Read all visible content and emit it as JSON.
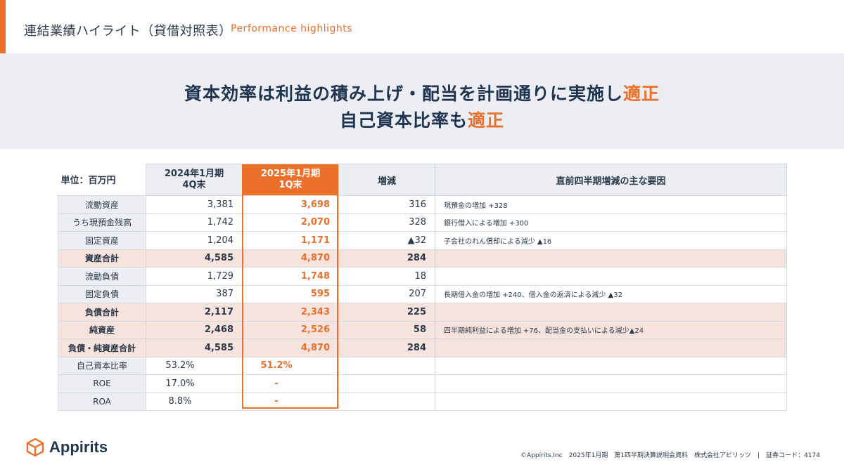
{
  "header": {
    "title": "連結業績ハイライト（貸借対照表）",
    "subtitle": "Performance highlights"
  },
  "banner": {
    "line1_main": "資本効率は利益の積み上げ・配当を計画通りに実施し",
    "line1_accent": "適正",
    "line2_main": "自己資本比率も",
    "line2_accent": "適正"
  },
  "table": {
    "unit_label": "単位：百万円",
    "col_2024_line1": "2024年1月期",
    "col_2024_line2": "4Q末",
    "col_2025_line1": "2025年1月期",
    "col_2025_line2": "1Q末",
    "col_change": "増減",
    "col_reason": "直前四半期増減の主な要因",
    "rows": [
      {
        "label": "流動資産",
        "v2024": "3,381",
        "v2025": "3,698",
        "change": "316",
        "reason": "現預金の増加 +328"
      },
      {
        "label": "うち現預金残高",
        "v2024": "1,742",
        "v2025": "2,070",
        "change": "328",
        "reason": "銀行借入による増加 +300"
      },
      {
        "label": "固定資産",
        "v2024": "1,204",
        "v2025": "1,171",
        "change": "▲32",
        "reason": "子会社のれん償却による減少 ▲16"
      },
      {
        "label": "資産合計",
        "v2024": "4,585",
        "v2025": "4,870",
        "change": "284",
        "reason": ""
      },
      {
        "label": "流動負債",
        "v2024": "1,729",
        "v2025": "1,748",
        "change": "18",
        "reason": ""
      },
      {
        "label": "固定負債",
        "v2024": "387",
        "v2025": "595",
        "change": "207",
        "reason": "長期借入金の増加 +240、借入金の返済による減少 ▲32"
      },
      {
        "label": "負債合計",
        "v2024": "2,117",
        "v2025": "2,343",
        "change": "225",
        "reason": ""
      },
      {
        "label": "純資産",
        "v2024": "2,468",
        "v2025": "2,526",
        "change": "58",
        "reason": "四半期純利益による増加 +76、配当金の支払いによる減少▲24"
      },
      {
        "label": "負債・純資産合計",
        "v2024": "4,585",
        "v2025": "4,870",
        "change": "284",
        "reason": ""
      },
      {
        "label": "自己資本比率",
        "v2024": "53.2%",
        "v2025": "51.2%",
        "change": "",
        "reason": ""
      },
      {
        "label": "ROE",
        "v2024": "17.0%",
        "v2025": "-",
        "change": "",
        "reason": ""
      },
      {
        "label": "ROA",
        "v2024": "8.8%",
        "v2025": "-",
        "change": "",
        "reason": ""
      }
    ]
  },
  "logo": {
    "text": "Appirits",
    "icon": "cube-icon"
  },
  "footer": {
    "text": "©Appirits.Inc　2025年1月期　第1四半期決算説明会資料　株式会社アピリッツ　|　証券コード：4174"
  },
  "colors": {
    "accent": "#ec6f2a",
    "navy": "#1f3450",
    "banner_bg": "#eceef3",
    "total_row_bg": "#f6e3de"
  }
}
